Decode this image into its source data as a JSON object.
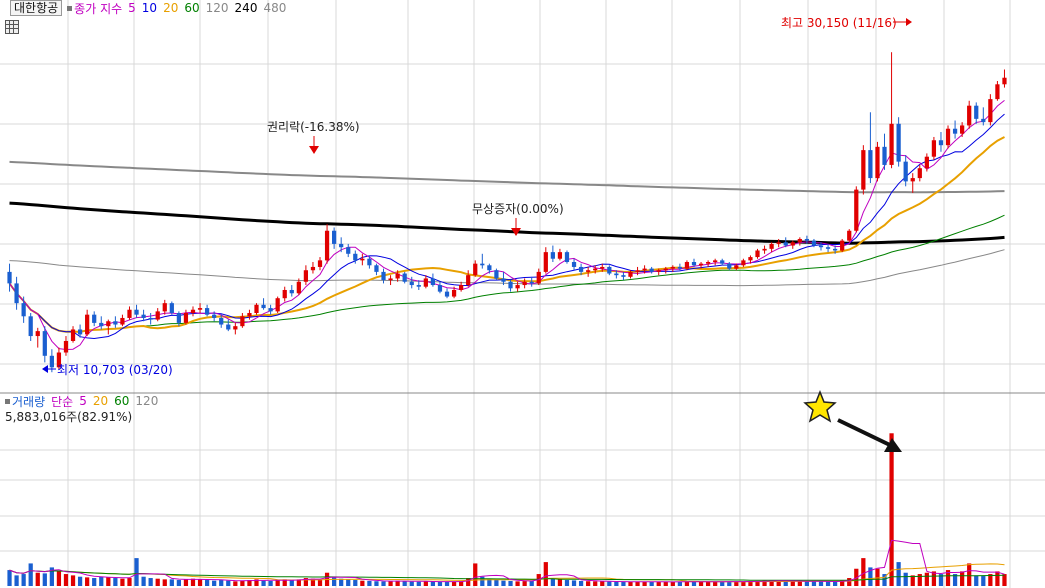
{
  "legend": {
    "stock_name": "대한항공",
    "price_label": "종가 지수",
    "ma_periods": [
      {
        "label": "5",
        "color": "#c000c0"
      },
      {
        "label": "10",
        "color": "#0000e0"
      },
      {
        "label": "20",
        "color": "#e8a000"
      },
      {
        "label": "60",
        "color": "#008000"
      },
      {
        "label": "120",
        "color": "#888888"
      },
      {
        "label": "240",
        "color": "#000000"
      },
      {
        "label": "480",
        "color": "#888888"
      }
    ]
  },
  "volume_legend": {
    "label": "거래량",
    "ma_label": "단순",
    "ma_periods": [
      {
        "label": "5",
        "color": "#c000c0"
      },
      {
        "label": "20",
        "color": "#e8a000"
      },
      {
        "label": "60",
        "color": "#008000"
      },
      {
        "label": "120",
        "color": "#888888"
      }
    ],
    "current_volume": "5,883,016주(82.91%)"
  },
  "annotations": {
    "high": "최고 30,150 (11/16)",
    "low": "최저 10,703 (03/20)",
    "rights": "권리락(-16.38%)",
    "capital": "무상증자(0.00%)"
  },
  "colors": {
    "up": "#e00000",
    "down": "#1a5fd0",
    "grid": "#d8d8d8",
    "star": "#ffe600"
  },
  "chart_data": {
    "type": "candlestick",
    "price_range": [
      9500,
      31500
    ],
    "high": 30150,
    "low": 10703,
    "candles": [
      [
        16800,
        17300,
        15600,
        16100
      ],
      [
        16100,
        16500,
        14500,
        14900
      ],
      [
        14900,
        15300,
        13700,
        14100
      ],
      [
        14100,
        14300,
        12600,
        12900
      ],
      [
        12900,
        13400,
        12200,
        13200
      ],
      [
        13200,
        13500,
        11300,
        11700
      ],
      [
        11700,
        12100,
        10703,
        11000
      ],
      [
        11000,
        12200,
        10900,
        11900
      ],
      [
        11900,
        12900,
        11700,
        12600
      ],
      [
        12600,
        13500,
        12500,
        13300
      ],
      [
        13300,
        13600,
        12800,
        13000
      ],
      [
        13000,
        14500,
        12900,
        14200
      ],
      [
        14200,
        14400,
        13500,
        13700
      ],
      [
        13700,
        14100,
        13300,
        13500
      ],
      [
        13500,
        13900,
        13000,
        13800
      ],
      [
        13800,
        14100,
        13400,
        13600
      ],
      [
        13600,
        14200,
        13500,
        14000
      ],
      [
        14000,
        14700,
        13900,
        14500
      ],
      [
        14500,
        14800,
        14000,
        14200
      ],
      [
        14200,
        14500,
        13800,
        14000
      ],
      [
        14000,
        14300,
        13600,
        13900
      ],
      [
        13900,
        14600,
        13800,
        14400
      ],
      [
        14400,
        15100,
        14200,
        14900
      ],
      [
        14900,
        15000,
        14200,
        14300
      ],
      [
        14300,
        14400,
        13500,
        13700
      ],
      [
        13700,
        14500,
        13600,
        14300
      ],
      [
        14300,
        14700,
        14100,
        14500
      ],
      [
        14500,
        14900,
        14300,
        14600
      ],
      [
        14600,
        14800,
        14100,
        14200
      ],
      [
        14200,
        14400,
        13800,
        14000
      ],
      [
        14000,
        14200,
        13400,
        13600
      ],
      [
        13600,
        13900,
        13200,
        13300
      ],
      [
        13300,
        13700,
        13000,
        13500
      ],
      [
        13500,
        14300,
        13400,
        14100
      ],
      [
        14100,
        14500,
        13900,
        14300
      ],
      [
        14300,
        14900,
        14200,
        14800
      ],
      [
        14800,
        15200,
        14500,
        14600
      ],
      [
        14600,
        14800,
        14200,
        14400
      ],
      [
        14400,
        15300,
        14300,
        15200
      ],
      [
        15200,
        15900,
        15000,
        15700
      ],
      [
        15700,
        16000,
        15300,
        15500
      ],
      [
        15500,
        16400,
        15400,
        16200
      ],
      [
        16200,
        17200,
        16000,
        16900
      ],
      [
        16900,
        17400,
        16700,
        17100
      ],
      [
        17100,
        17700,
        16900,
        17500
      ],
      [
        17500,
        19700,
        17300,
        19300
      ],
      [
        19300,
        19500,
        18200,
        18500
      ],
      [
        18500,
        18900,
        18000,
        18300
      ],
      [
        18300,
        18500,
        17700,
        17900
      ],
      [
        17900,
        18100,
        17300,
        17500
      ],
      [
        17500,
        17900,
        17200,
        17600
      ],
      [
        17600,
        17800,
        17000,
        17200
      ],
      [
        17200,
        17300,
        16600,
        16800
      ],
      [
        16800,
        17000,
        16100,
        16300
      ],
      [
        16300,
        16600,
        16000,
        16400
      ],
      [
        16400,
        16900,
        16200,
        16700
      ],
      [
        16700,
        16800,
        16100,
        16200
      ],
      [
        16200,
        16500,
        15800,
        16000
      ],
      [
        16000,
        16300,
        15700,
        15900
      ],
      [
        15900,
        16600,
        15800,
        16400
      ],
      [
        16400,
        16700,
        15900,
        16000
      ],
      [
        16000,
        16200,
        15500,
        15600
      ],
      [
        15600,
        15800,
        15200,
        15300
      ],
      [
        15300,
        15900,
        15200,
        15700
      ],
      [
        15700,
        16200,
        15600,
        16000
      ],
      [
        16000,
        16900,
        15900,
        16600
      ],
      [
        16600,
        17500,
        16500,
        17300
      ],
      [
        17300,
        17900,
        17000,
        17200
      ],
      [
        17200,
        17300,
        16700,
        16900
      ],
      [
        16900,
        17000,
        16300,
        16400
      ],
      [
        16400,
        16800,
        16000,
        16200
      ],
      [
        16200,
        16300,
        15600,
        15800
      ],
      [
        15800,
        16200,
        15600,
        16000
      ],
      [
        16000,
        16400,
        15800,
        16200
      ],
      [
        16200,
        16500,
        15900,
        16100
      ],
      [
        16100,
        17000,
        16000,
        16800
      ],
      [
        16800,
        18300,
        16700,
        18000
      ],
      [
        18000,
        18400,
        17400,
        17600
      ],
      [
        17600,
        18200,
        17500,
        18000
      ],
      [
        18000,
        18100,
        17300,
        17400
      ],
      [
        17400,
        17600,
        16900,
        17100
      ],
      [
        17100,
        17300,
        16600,
        16800
      ],
      [
        16800,
        17100,
        16500,
        16900
      ],
      [
        16900,
        17200,
        16700,
        17000
      ],
      [
        17000,
        17300,
        16800,
        17100
      ],
      [
        17100,
        17200,
        16600,
        16700
      ],
      [
        16700,
        16900,
        16400,
        16600
      ],
      [
        16600,
        16800,
        16300,
        16500
      ],
      [
        16500,
        16900,
        16400,
        16800
      ],
      [
        16800,
        17100,
        16600,
        16900
      ],
      [
        16900,
        17200,
        16700,
        17000
      ],
      [
        17000,
        17100,
        16700,
        16800
      ],
      [
        16800,
        17000,
        16600,
        16900
      ],
      [
        16900,
        17100,
        16700,
        17000
      ],
      [
        17000,
        17200,
        16800,
        17100
      ],
      [
        17100,
        17300,
        16900,
        17000
      ],
      [
        17000,
        17500,
        16900,
        17400
      ],
      [
        17400,
        17600,
        17100,
        17200
      ],
      [
        17200,
        17400,
        17000,
        17300
      ],
      [
        17300,
        17500,
        17100,
        17400
      ],
      [
        17400,
        17600,
        17200,
        17500
      ],
      [
        17500,
        17600,
        17200,
        17300
      ],
      [
        17300,
        17400,
        16900,
        17000
      ],
      [
        17000,
        17300,
        16900,
        17200
      ],
      [
        17200,
        17600,
        17100,
        17500
      ],
      [
        17500,
        17800,
        17300,
        17700
      ],
      [
        17700,
        18200,
        17600,
        18100
      ],
      [
        18100,
        18400,
        17900,
        18200
      ],
      [
        18200,
        18600,
        18000,
        18500
      ],
      [
        18500,
        18800,
        18300,
        18600
      ],
      [
        18600,
        18900,
        18300,
        18400
      ],
      [
        18400,
        18700,
        18200,
        18600
      ],
      [
        18600,
        18900,
        18400,
        18800
      ],
      [
        18800,
        19000,
        18500,
        18700
      ],
      [
        18700,
        18800,
        18300,
        18400
      ],
      [
        18400,
        18600,
        18100,
        18300
      ],
      [
        18300,
        18500,
        18000,
        18200
      ],
      [
        18200,
        18400,
        17900,
        18100
      ],
      [
        18100,
        18800,
        18000,
        18700
      ],
      [
        18700,
        19400,
        18600,
        19300
      ],
      [
        19300,
        22000,
        19200,
        21800
      ],
      [
        21800,
        24500,
        21500,
        24200
      ],
      [
        24200,
        26500,
        22200,
        22500
      ],
      [
        22500,
        24700,
        22300,
        24400
      ],
      [
        24400,
        25200,
        23000,
        23300
      ],
      [
        23300,
        30150,
        23100,
        25800
      ],
      [
        25800,
        26200,
        23200,
        23500
      ],
      [
        23500,
        23900,
        22000,
        22300
      ],
      [
        22300,
        22800,
        21600,
        22500
      ],
      [
        22500,
        23300,
        22300,
        23100
      ],
      [
        23100,
        24000,
        22900,
        23800
      ],
      [
        23800,
        25000,
        23600,
        24800
      ],
      [
        24800,
        25300,
        24100,
        24500
      ],
      [
        24500,
        25700,
        24300,
        25500
      ],
      [
        25500,
        26000,
        24900,
        25200
      ],
      [
        25200,
        25900,
        25000,
        25700
      ],
      [
        25700,
        27200,
        25500,
        26900
      ],
      [
        26900,
        27100,
        25800,
        26100
      ],
      [
        26100,
        26800,
        25700,
        25900
      ],
      [
        25900,
        27600,
        25700,
        27300
      ],
      [
        27300,
        28400,
        27200,
        28200
      ],
      [
        28200,
        29100,
        28000,
        28600
      ]
    ],
    "volume_ylim": [
      0,
      12500000
    ],
    "volumes": [
      1200000,
      800000,
      900000,
      1700000,
      1000000,
      950000,
      1400000,
      1100000,
      900000,
      800000,
      700000,
      650000,
      600000,
      700000,
      650000,
      600000,
      550000,
      600000,
      2100000,
      700000,
      600000,
      550000,
      500000,
      500000,
      450000,
      500000,
      550000,
      500000,
      450000,
      400000,
      450000,
      400000,
      350000,
      400000,
      450000,
      500000,
      400000,
      380000,
      420000,
      500000,
      450000,
      500000,
      600000,
      550000,
      500000,
      1000000,
      700000,
      550000,
      500000,
      450000,
      400000,
      380000,
      360000,
      340000,
      380000,
      400000,
      350000,
      330000,
      320000,
      360000,
      340000,
      320000,
      300000,
      340000,
      360000,
      600000,
      1700000,
      700000,
      550000,
      450000,
      400000,
      380000,
      350000,
      370000,
      400000,
      900000,
      1800000,
      600000,
      500000,
      450000,
      420000,
      380000,
      360000,
      350000,
      340000,
      330000,
      320000,
      310000,
      330000,
      340000,
      320000,
      310000,
      300000,
      310000,
      320000,
      330000,
      340000,
      320000,
      310000,
      320000,
      330000,
      350000,
      330000,
      320000,
      340000,
      360000,
      380000,
      400000,
      420000,
      380000,
      360000,
      350000,
      360000,
      370000,
      350000,
      340000,
      330000,
      320000,
      420000,
      600000,
      1300000,
      2100000,
      1400000,
      1300000,
      900000,
      11500000,
      1800000,
      1000000,
      800000,
      900000,
      1000000,
      1100000,
      900000,
      1200000,
      900000,
      1100000,
      1700000,
      800000,
      750000,
      900000,
      1100000,
      900000
    ]
  }
}
